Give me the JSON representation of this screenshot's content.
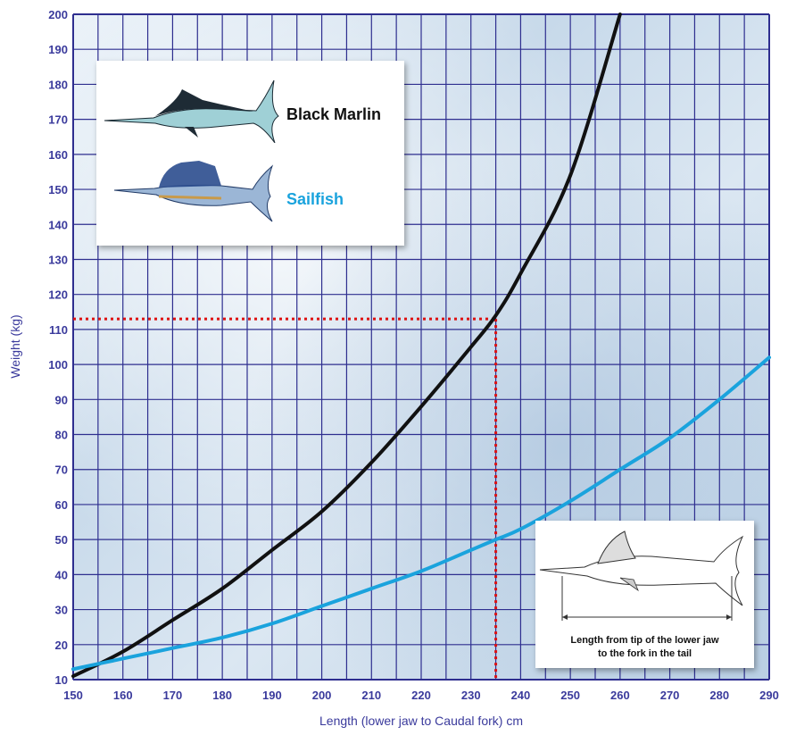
{
  "chart_data": {
    "type": "line",
    "xlabel": "Length (lower jaw to Caudal fork) cm",
    "ylabel": "Weight (kg)",
    "xlim": [
      150,
      290
    ],
    "ylim": [
      10,
      200
    ],
    "x_ticks": [
      "150",
      "160",
      "170",
      "180",
      "190",
      "200",
      "210",
      "220",
      "230",
      "240",
      "250",
      "260",
      "270",
      "280",
      "290"
    ],
    "y_ticks": [
      "10",
      "20",
      "30",
      "40",
      "50",
      "60",
      "70",
      "80",
      "90",
      "100",
      "110",
      "120",
      "130",
      "140",
      "150",
      "160",
      "170",
      "180",
      "190",
      "200"
    ],
    "grid": true,
    "legend_position": "top-left",
    "series": [
      {
        "name": "Black Marlin",
        "color": "#111111",
        "x": [
          150,
          160,
          170,
          180,
          190,
          200,
          210,
          220,
          230,
          235,
          240,
          250,
          260
        ],
        "y": [
          11,
          18,
          27,
          36,
          47,
          58,
          72,
          88,
          105,
          114,
          126,
          154,
          200
        ]
      },
      {
        "name": "Sailfish",
        "color": "#1aa3dd",
        "x": [
          150,
          160,
          170,
          180,
          190,
          200,
          210,
          220,
          230,
          235,
          240,
          250,
          260,
          270,
          280,
          290
        ],
        "y": [
          13,
          16,
          19,
          22,
          26,
          31,
          36,
          41,
          47,
          50,
          53,
          61,
          70,
          79,
          90,
          102
        ]
      }
    ],
    "reference_lines": {
      "x": 235,
      "y": 113,
      "color": "#dd1111",
      "style": "dotted"
    }
  },
  "legend": {
    "black_marlin": "Black Marlin",
    "sailfish": "Sailfish",
    "black_marlin_color": "#111111",
    "sailfish_color": "#1aa3dd"
  },
  "inset": {
    "caption_line1": "Length from tip of the lower jaw",
    "caption_line2": "to the fork in the tail"
  },
  "colors": {
    "axis": "#3a3a9c",
    "grid": "#2e2e8f"
  }
}
